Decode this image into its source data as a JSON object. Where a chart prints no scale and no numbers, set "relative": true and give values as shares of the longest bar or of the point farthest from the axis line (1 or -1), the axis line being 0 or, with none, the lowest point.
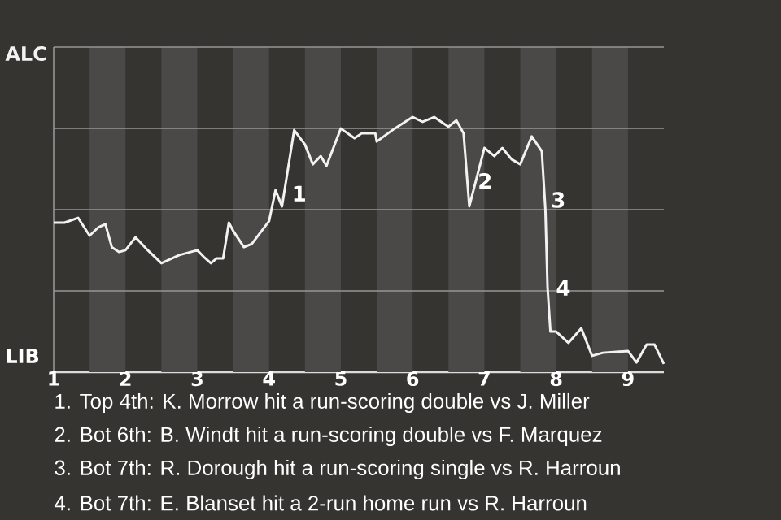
{
  "chart_data": {
    "type": "line",
    "relative": true,
    "x": [
      1,
      1.15,
      1.34,
      1.5,
      1.62,
      1.72,
      1.81,
      1.91,
      2,
      2.14,
      2.31,
      2.5,
      2.75,
      3,
      3.09,
      3.19,
      3.27,
      3.36,
      3.44,
      3.5,
      3.65,
      3.76,
      4,
      4.09,
      4.18,
      4.35,
      4.5,
      4.61,
      4.72,
      4.8,
      5,
      5.19,
      5.29,
      5.48,
      5.5,
      5.75,
      6,
      6.14,
      6.3,
      6.5,
      6.61,
      6.71,
      6.79,
      7,
      7.14,
      7.25,
      7.38,
      7.5,
      7.66,
      7.8,
      7.85,
      7.88,
      7.92,
      8,
      8.17,
      8.35,
      8.5,
      8.65,
      9,
      9.12,
      9.26,
      9.37,
      9.5
    ],
    "series": [
      {
        "color": "#f2f2f2",
        "values": [
          0.586,
          0.586,
          0.605,
          0.535,
          0.567,
          0.58,
          0.49,
          0.471,
          0.478,
          0.529,
          0.478,
          0.427,
          0.459,
          0.478,
          0.452,
          0.427,
          0.446,
          0.446,
          0.586,
          0.554,
          0.49,
          0.503,
          0.592,
          0.713,
          0.65,
          0.949,
          0.892,
          0.815,
          0.847,
          0.809,
          0.955,
          0.917,
          0.936,
          0.936,
          0.904,
          0.955,
          1,
          0.981,
          1,
          0.962,
          0.987,
          0.936,
          0.65,
          0.879,
          0.847,
          0.879,
          0.834,
          0.815,
          0.924,
          0.866,
          0.637,
          0.331,
          0.159,
          0.159,
          0.115,
          0.172,
          0.064,
          0.076,
          0.083,
          0.038,
          0.108,
          0.108,
          0.032
        ]
      }
    ],
    "xlim": [
      1,
      9.5
    ],
    "xticks": [
      {
        "value": 1,
        "label": "1"
      },
      {
        "value": 2,
        "label": "2"
      },
      {
        "value": 3,
        "label": "3"
      },
      {
        "value": 4,
        "label": "4"
      },
      {
        "value": 5,
        "label": "5"
      },
      {
        "value": 6,
        "label": "6"
      },
      {
        "value": 7,
        "label": "7"
      },
      {
        "value": 8,
        "label": "8"
      },
      {
        "value": 9,
        "label": "9"
      }
    ],
    "grid": "y",
    "bands": [
      {
        "axis": "x",
        "from": 1.5,
        "to": 2,
        "color": "#4b4947"
      },
      {
        "axis": "x",
        "from": 2.5,
        "to": 3,
        "color": "#4b4947"
      },
      {
        "axis": "x",
        "from": 3.5,
        "to": 4,
        "color": "#4b4947"
      },
      {
        "axis": "x",
        "from": 4.5,
        "to": 5,
        "color": "#4b4947"
      },
      {
        "axis": "x",
        "from": 5.5,
        "to": 6,
        "color": "#4b4947"
      },
      {
        "axis": "x",
        "from": 6.5,
        "to": 7,
        "color": "#4b4947"
      },
      {
        "axis": "x",
        "from": 7.5,
        "to": 8,
        "color": "#4b4947"
      },
      {
        "axis": "x",
        "from": 8.5,
        "to": 9,
        "color": "#4b4947"
      }
    ],
    "annotations": [
      "ALC",
      "LIB",
      {
        "text": "1",
        "x": 4.29,
        "y": 0.7
      },
      {
        "text": "2",
        "x": 6.88,
        "y": 0.75
      },
      {
        "text": "3",
        "x": 7.9,
        "y": 0.675
      },
      {
        "text": "4",
        "x": 7.97,
        "y": 0.33
      },
      "1. Top 4th: K. Morrow hit a run-scoring double vs J. Miller",
      "2. Bot 6th: B. Windt hit a run-scoring double vs F. Marquez",
      "3. Bot 7th: R. Dorough hit a run-scoring single vs R. Harroun",
      "4. Bot 7th: E. Blanset hit a 2-run home run vs R. Harroun"
    ]
  }
}
